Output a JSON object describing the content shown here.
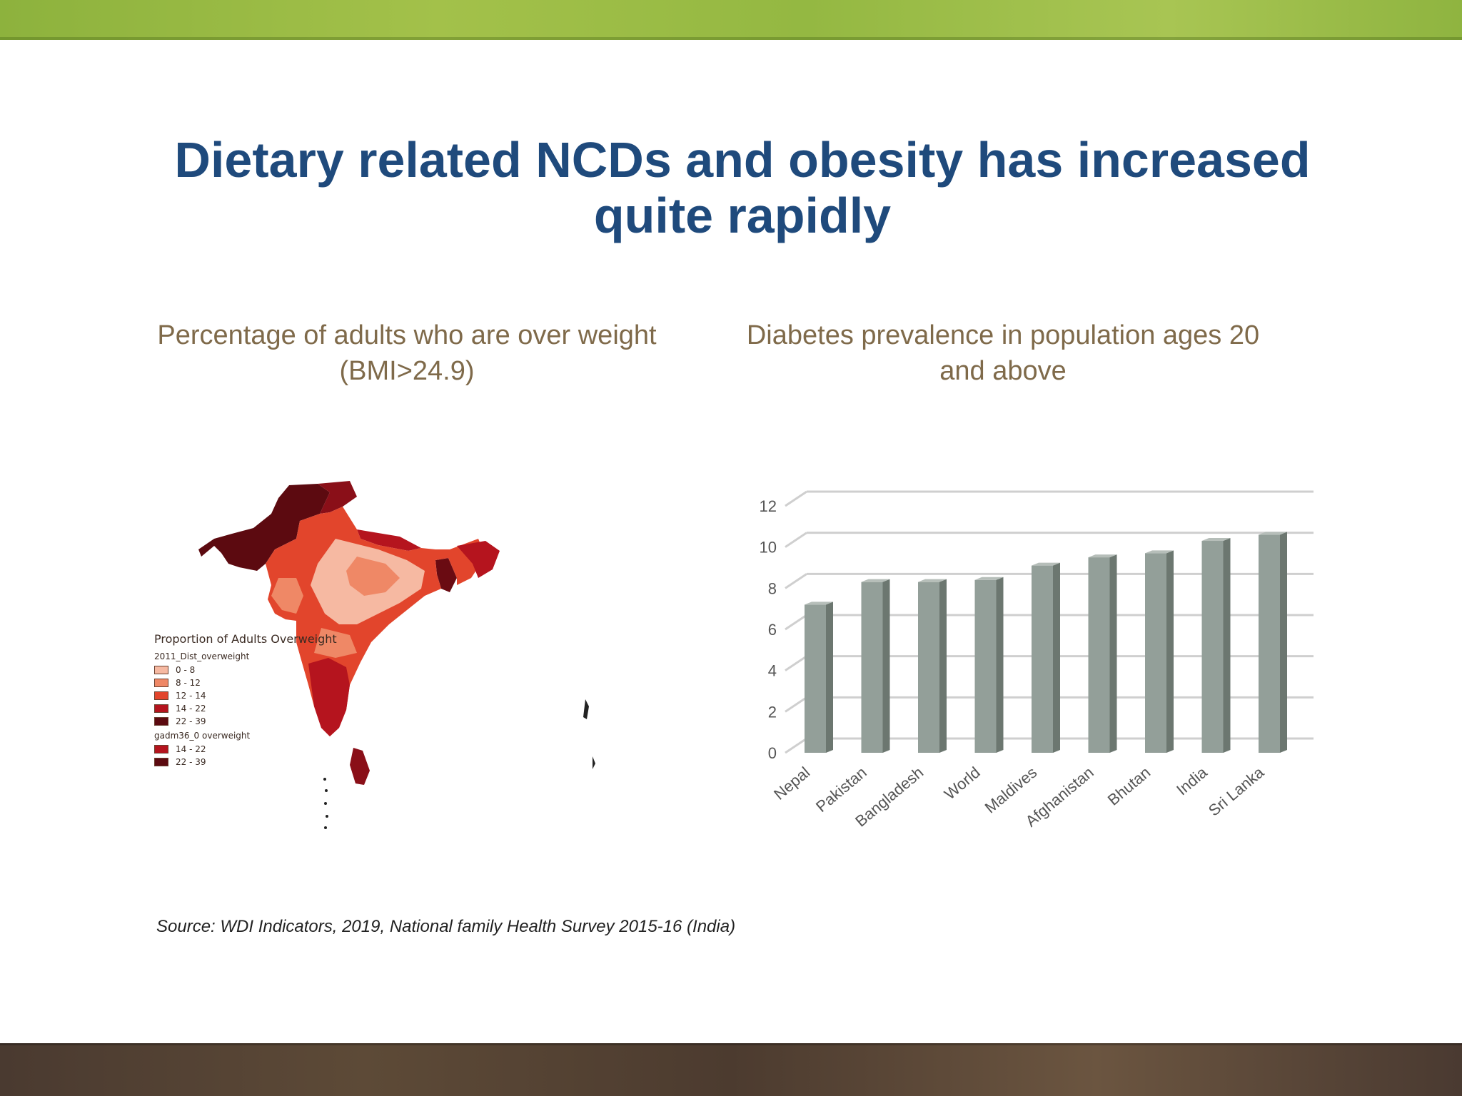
{
  "slide": {
    "title": "Dietary related NCDs and obesity has increased quite rapidly",
    "map_subtitle": "Percentage of adults who are over weight (BMI>24.9)",
    "chart_subtitle": "Diabetes prevalence in population ages 20 and above",
    "source": "Source: WDI Indicators, 2019, National family Health Survey 2015-16 (India)"
  },
  "map": {
    "legend_title": "Proportion of Adults Overweight",
    "group1_title": "2011_Dist_overweight",
    "group1": [
      {
        "label": "0 - 8",
        "color": "#f6b9a2"
      },
      {
        "label": "8 - 12",
        "color": "#ef8866"
      },
      {
        "label": "12 - 14",
        "color": "#e2452c"
      },
      {
        "label": "14 - 22",
        "color": "#b5141e"
      },
      {
        "label": "22 - 39",
        "color": "#5c0a10"
      }
    ],
    "group2_title": "gadm36_0 overweight",
    "group2": [
      {
        "label": "14 - 22",
        "color": "#b5141e"
      },
      {
        "label": "22 - 39",
        "color": "#5c0a10"
      }
    ]
  },
  "chart_data": {
    "type": "bar",
    "title": "Diabetes prevalence in population ages 20 and above",
    "categories": [
      "Nepal",
      "Pakistan",
      "Bangladesh",
      "World",
      "Maldives",
      "Afghanistan",
      "Bhutan",
      "India",
      "Sri Lanka"
    ],
    "values": [
      7.2,
      8.3,
      8.3,
      8.4,
      9.1,
      9.5,
      9.7,
      10.3,
      10.6
    ],
    "xlabel": "",
    "ylabel": "",
    "ylim": [
      0,
      12
    ],
    "yticks": [
      0,
      2,
      4,
      6,
      8,
      10,
      12
    ],
    "grid": true,
    "style": "3d-columns",
    "bar_color": "#939f99",
    "bar_side_color": "#6c7770",
    "bar_top_color": "#b6beb9"
  }
}
